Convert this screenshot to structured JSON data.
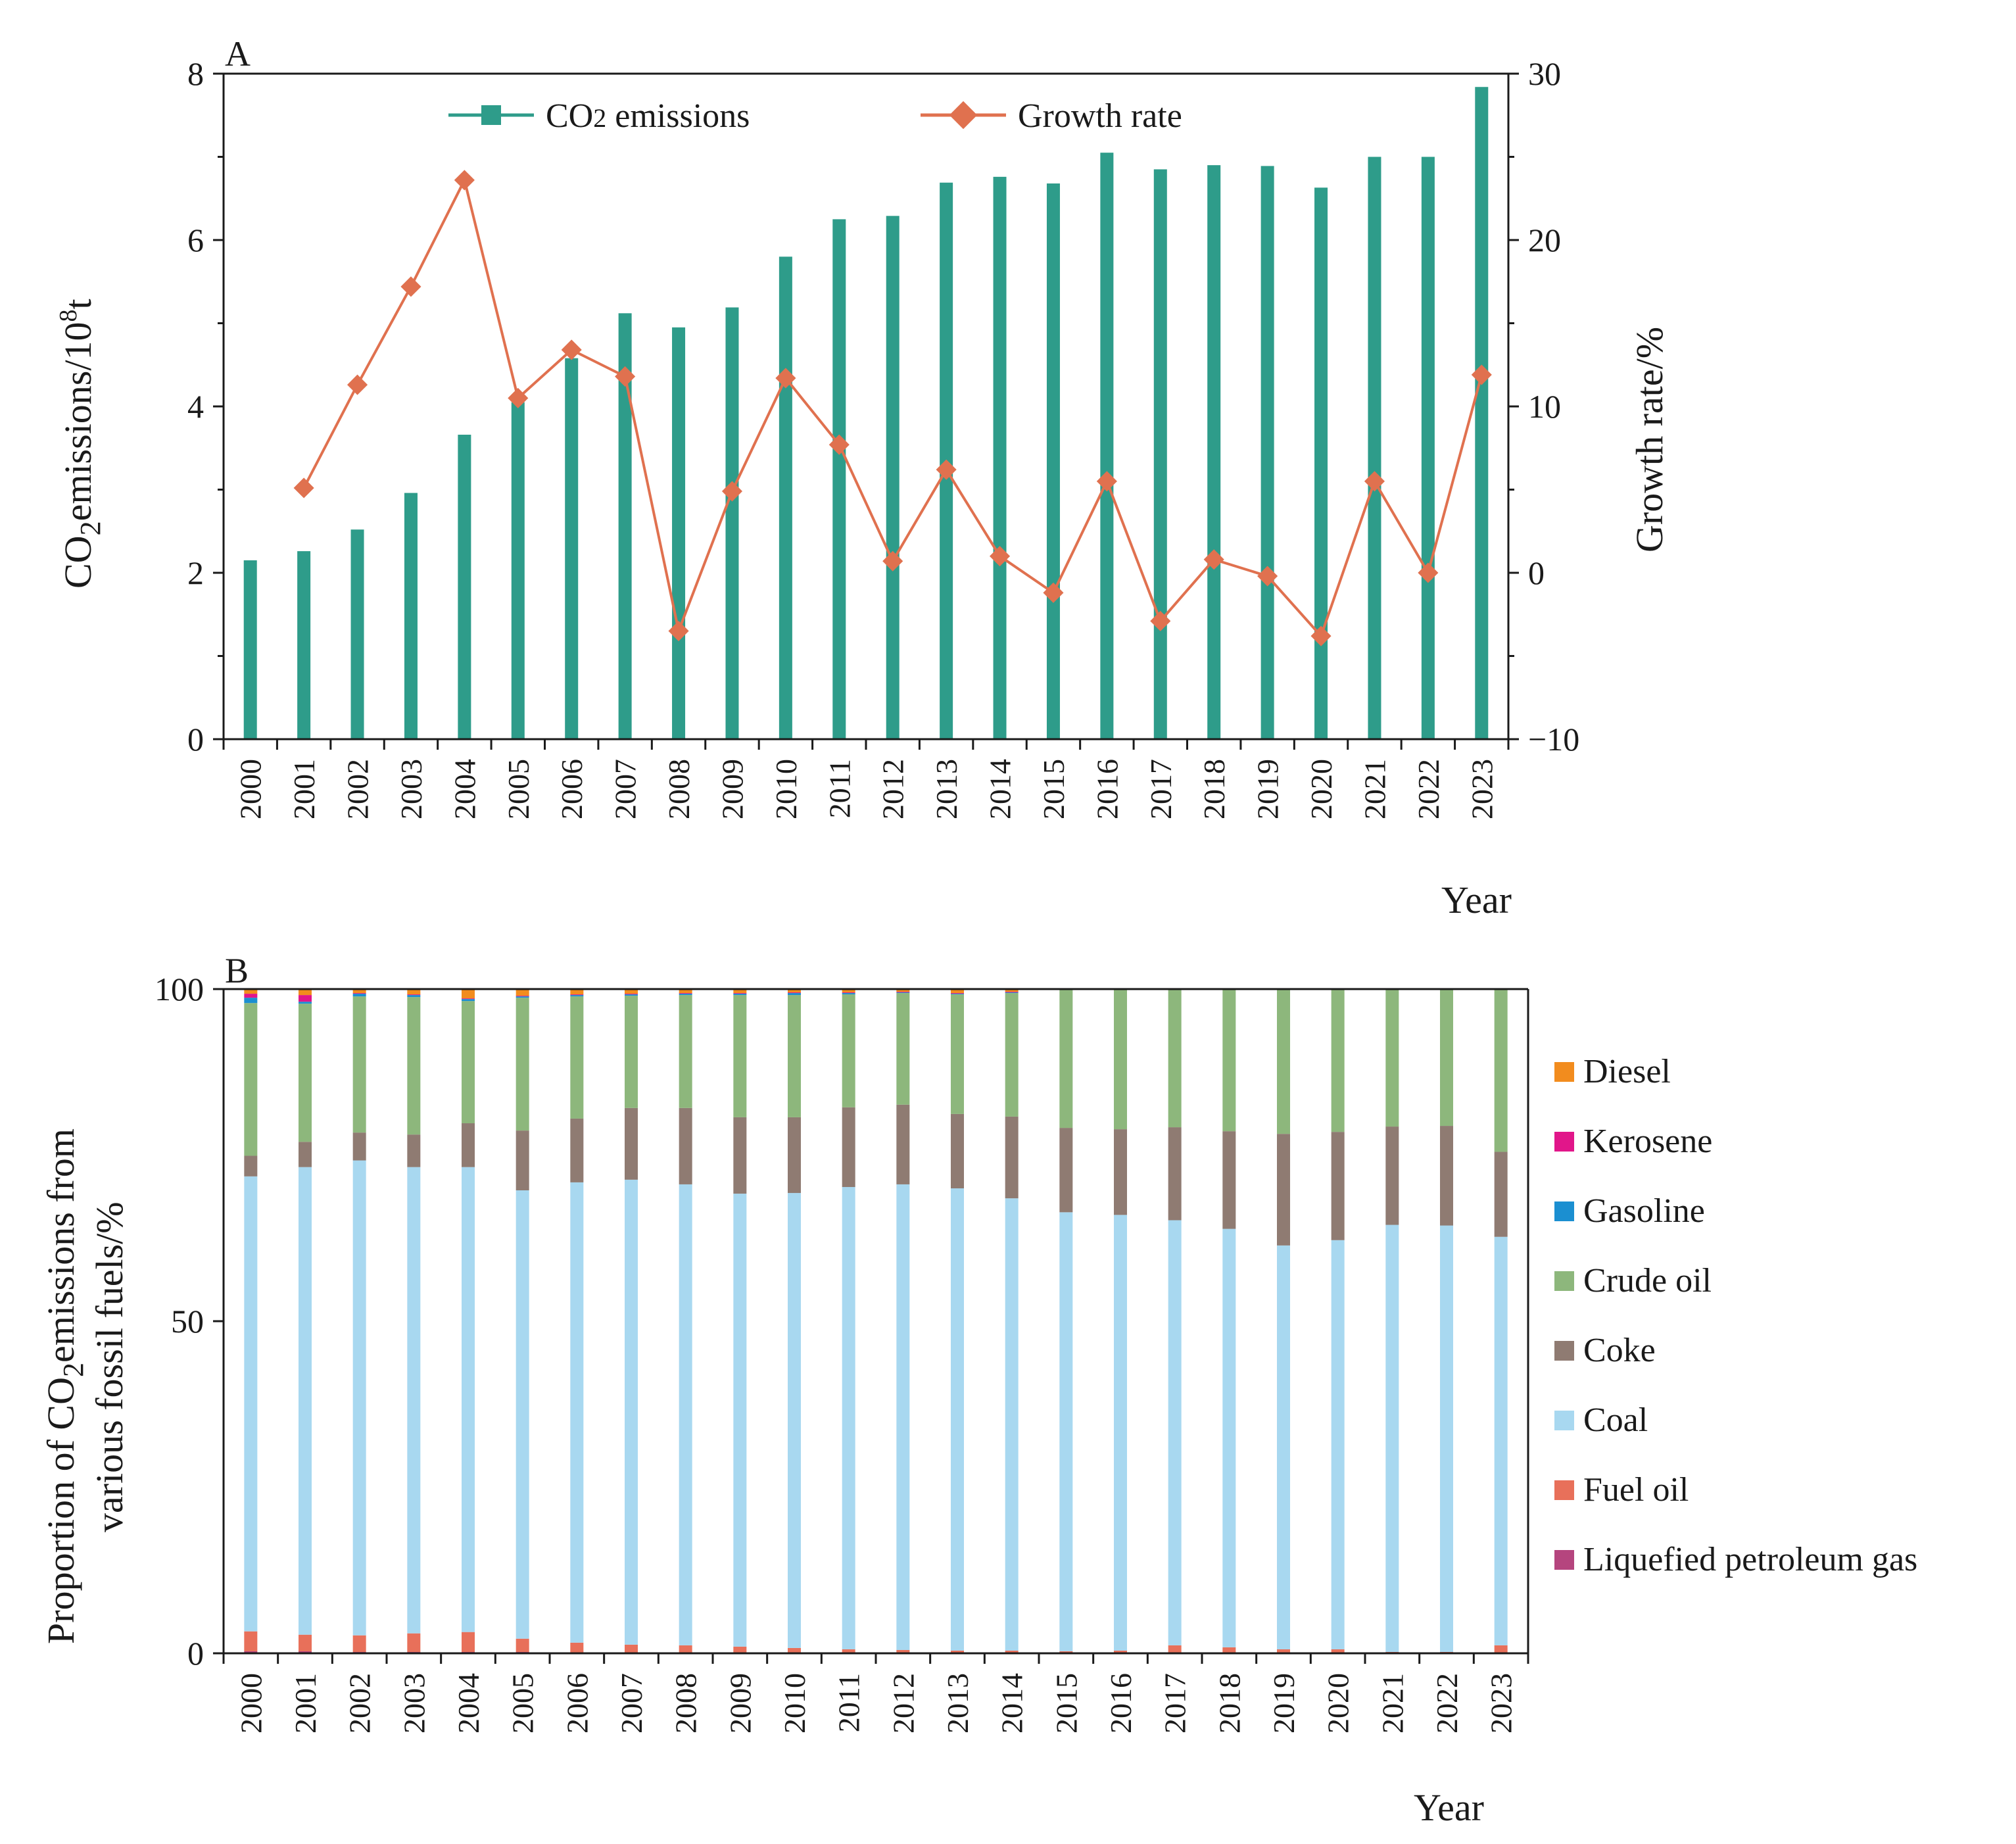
{
  "chart_data": [
    {
      "type": "bar+line",
      "panel_label": "A",
      "categories": [
        "2000",
        "2001",
        "2002",
        "2003",
        "2004",
        "2005",
        "2006",
        "2007",
        "2008",
        "2009",
        "2010",
        "2011",
        "2012",
        "2013",
        "2014",
        "2015",
        "2016",
        "2017",
        "2018",
        "2019",
        "2020",
        "2021",
        "2022",
        "2023"
      ],
      "series": [
        {
          "name": "CO2 emissions",
          "axis": "left",
          "kind": "bar",
          "color": "#2e9c8a",
          "values": [
            2.15,
            2.26,
            2.52,
            2.96,
            3.66,
            4.05,
            4.58,
            5.12,
            4.95,
            5.19,
            5.8,
            6.25,
            6.29,
            6.69,
            6.76,
            6.68,
            7.05,
            6.85,
            6.9,
            6.89,
            6.63,
            7.0,
            7.0,
            7.84
          ]
        },
        {
          "name": "Growth rate",
          "axis": "right",
          "kind": "line",
          "color": "#e0714f",
          "values": [
            null,
            5.1,
            11.3,
            17.2,
            23.6,
            10.5,
            13.4,
            11.8,
            -3.5,
            4.9,
            11.7,
            7.7,
            0.7,
            6.2,
            1.0,
            -1.2,
            5.5,
            -2.9,
            0.8,
            -0.2,
            -3.8,
            5.5,
            0.0,
            11.9
          ]
        }
      ],
      "legend": {
        "co2_prefix": "CO",
        "co2_sub": "2",
        "co2_suffix": " emissions",
        "growth": "Growth rate"
      },
      "ylabel_left": {
        "prefix": "CO",
        "sub": "2",
        "mid": "emissions/10",
        "sup": "8",
        "suffix": "t"
      },
      "ylabel_right": "Growth rate/%",
      "xlabel": "Year",
      "ylim_left": [
        0,
        8
      ],
      "yticks_left": [
        "0",
        "2",
        "4",
        "6",
        "8"
      ],
      "ylim_right": [
        -10,
        30
      ],
      "yticks_right": [
        "−10",
        "0",
        "10",
        "20",
        "30"
      ]
    },
    {
      "type": "stacked_bar",
      "panel_label": "B",
      "categories": [
        "2000",
        "2001",
        "2002",
        "2003",
        "2004",
        "2005",
        "2006",
        "2007",
        "2008",
        "2009",
        "2010",
        "2011",
        "2012",
        "2013",
        "2014",
        "2015",
        "2016",
        "2017",
        "2018",
        "2019",
        "2020",
        "2021",
        "2022",
        "2023"
      ],
      "series": [
        {
          "name": "Liquefied petroleum gas",
          "color": "#b5457e",
          "values": [
            0.3,
            0.3,
            0.2,
            0.2,
            0.2,
            0.2,
            0.1,
            0.1,
            0.1,
            0.1,
            0.1,
            0.1,
            0.1,
            0.1,
            0.1,
            0.0,
            0.1,
            0.1,
            0.1,
            0.1,
            0.1,
            0.1,
            0.1,
            0.1
          ]
        },
        {
          "name": "Fuel oil",
          "color": "#e8705a",
          "values": [
            3.0,
            2.5,
            2.5,
            2.8,
            3.0,
            2.0,
            1.5,
            1.2,
            1.1,
            0.9,
            0.7,
            0.5,
            0.4,
            0.3,
            0.3,
            0.3,
            0.3,
            1.1,
            0.8,
            0.5,
            0.5,
            0.1,
            0.1,
            1.1
          ]
        },
        {
          "name": "Coal",
          "color": "#a8d8f0",
          "values": [
            68.5,
            70.4,
            71.5,
            70.2,
            70.0,
            67.5,
            69.3,
            70.0,
            69.4,
            68.2,
            68.5,
            69.6,
            70.1,
            69.6,
            68.1,
            66.1,
            65.6,
            64.0,
            63.0,
            60.8,
            61.6,
            64.3,
            64.2,
            61.5
          ]
        },
        {
          "name": "Coke",
          "color": "#8f7b72",
          "values": [
            3.1,
            3.8,
            4.2,
            4.9,
            6.6,
            9.0,
            9.6,
            10.8,
            11.5,
            11.5,
            11.4,
            12.0,
            12.0,
            11.2,
            12.3,
            12.7,
            12.9,
            14.0,
            14.7,
            16.8,
            16.3,
            14.8,
            15.0,
            12.8
          ]
        },
        {
          "name": "Crude oil",
          "color": "#8db77c",
          "values": [
            23.0,
            20.8,
            20.5,
            20.7,
            18.4,
            20.0,
            18.4,
            16.9,
            17.0,
            18.4,
            18.4,
            17.0,
            16.8,
            18.0,
            18.6,
            20.8,
            21.0,
            20.7,
            21.3,
            21.8,
            21.5,
            20.7,
            20.6,
            24.5
          ]
        },
        {
          "name": "Gasoline",
          "color": "#1b8fd1",
          "values": [
            0.8,
            0.3,
            0.4,
            0.3,
            0.3,
            0.2,
            0.2,
            0.2,
            0.2,
            0.2,
            0.3,
            0.2,
            0.1,
            0.1,
            0.1,
            0.0,
            0.0,
            0.0,
            0.0,
            0.0,
            0.0,
            0.0,
            0.0,
            0.0
          ]
        },
        {
          "name": "Kerosene",
          "color": "#e1168a",
          "values": [
            0.6,
            1.0,
            0.1,
            0.1,
            0.1,
            0.1,
            0.1,
            0.1,
            0.1,
            0.1,
            0.1,
            0.1,
            0.1,
            0.1,
            0.1,
            0.0,
            0.0,
            0.0,
            0.0,
            0.0,
            0.0,
            0.0,
            0.0,
            0.0
          ]
        },
        {
          "name": "Diesel",
          "color": "#f28c1e",
          "values": [
            0.7,
            0.9,
            0.6,
            0.8,
            1.4,
            1.0,
            0.8,
            0.7,
            0.6,
            0.6,
            0.5,
            0.5,
            0.4,
            0.6,
            0.4,
            0.1,
            0.1,
            0.1,
            0.1,
            0.0,
            0.0,
            0.0,
            0.0,
            0.0
          ]
        }
      ],
      "legend_order": [
        "Diesel",
        "Kerosene",
        "Gasoline",
        "Crude oil",
        "Coke",
        "Coal",
        "Fuel oil",
        "Liquefied petroleum gas"
      ],
      "ylabel_line1": "Proportion of CO",
      "ylabel_sub": "2",
      "ylabel_line1_suffix": "emissions from",
      "ylabel_line2": "various fossil fuels/%",
      "xlabel": "Year",
      "ylim": [
        0,
        100
      ],
      "yticks": [
        "0",
        "50",
        "100"
      ]
    }
  ]
}
